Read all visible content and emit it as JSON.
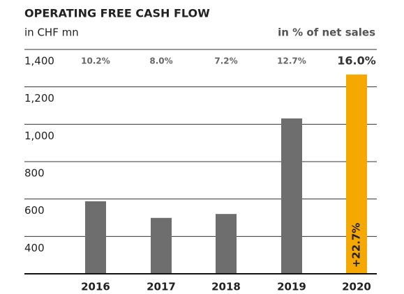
{
  "chart_data": {
    "type": "bar",
    "title": "OPERATING FREE CASH FLOW",
    "subtitle": "in CHF mn",
    "secondary_label": "in % of net sales",
    "categories": [
      "2016",
      "2017",
      "2018",
      "2019",
      "2020"
    ],
    "values": [
      588,
      499,
      520,
      1031,
      1266
    ],
    "colors": [
      "#6e6e6e",
      "#6e6e6e",
      "#6e6e6e",
      "#6e6e6e",
      "#f5a800"
    ],
    "net_sales_share": [
      "10.2%",
      "8.0%",
      "7.2%",
      "12.7%",
      "16.0%"
    ],
    "bar_annotation": "+22.7%",
    "ylim": [
      200,
      1400
    ],
    "yticks": [
      {
        "value": 400,
        "label": "400"
      },
      {
        "value": 600,
        "label": "600"
      },
      {
        "value": 800,
        "label": "800"
      },
      {
        "value": 1000,
        "label": "1,000"
      },
      {
        "value": 1200,
        "label": "1,200"
      },
      {
        "value": 1400,
        "label": "1,400"
      }
    ],
    "grid": true
  }
}
